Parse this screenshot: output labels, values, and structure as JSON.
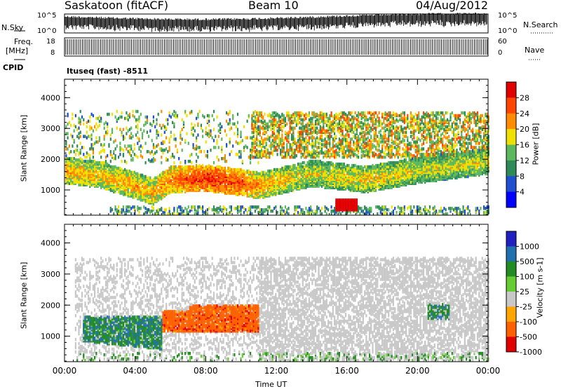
{
  "header": {
    "station": "Saskatoon (fitACF)",
    "beam": "Beam 10",
    "date": "04/Aug/2012"
  },
  "top_strip": {
    "nsky_label": "N.Sky",
    "nsky_ticks": [
      "10^5",
      "10^0"
    ],
    "nsearch_label": "N.Search",
    "nsearch_ticks": [
      "10^5",
      "10^0"
    ],
    "freq_label": "Freq.",
    "freq_unit": "[MHz]",
    "freq_ticks": [
      "18",
      "8"
    ],
    "nave_label": "Nave",
    "nave_ticks": [
      "60",
      "0"
    ],
    "cpid_label": "CPID",
    "cpid_value": "Ituseq (fast) -8511"
  },
  "colors": {
    "power_scale": [
      "#0000ff",
      "#1f4fd0",
      "#2e8b57",
      "#5cb85c",
      "#f0e000",
      "#ff8c00",
      "#ff4500",
      "#e00000"
    ],
    "velocity_scale": [
      "#2020c0",
      "#2070b0",
      "#228b22",
      "#66cc33",
      "#c8c8c8",
      "#ffa500",
      "#ff6000",
      "#e00000"
    ]
  },
  "chart_data": [
    {
      "type": "heatmap",
      "panel": "power",
      "x_ticks": [
        "00:00",
        "04:00",
        "08:00",
        "12:00",
        "16:00",
        "20:00",
        "00:00"
      ],
      "xlim_hours": [
        0,
        24
      ],
      "ylabel": "Slant Range [km]",
      "y_ticks": [
        1000,
        2000,
        3000,
        4000
      ],
      "ylim_km": [
        180,
        4600
      ],
      "colorbar_label": "Power [dB]",
      "colorbar_ticks": [
        4,
        8,
        12,
        16,
        20,
        24,
        28
      ],
      "clim": [
        0,
        32
      ],
      "grid": false,
      "features": [
        {
          "desc": "main echo band",
          "t": [
            0,
            2,
            4,
            5,
            6,
            8,
            10,
            11,
            14,
            17,
            20,
            24
          ],
          "range_km": [
            1600,
            1450,
            1100,
            900,
            1300,
            1350,
            1200,
            1100,
            1500,
            1300,
            1600,
            1900
          ],
          "power_db": [
            22,
            20,
            22,
            21,
            24,
            28,
            26,
            22,
            18,
            20,
            18,
            18
          ]
        },
        {
          "desc": "near-range patch",
          "t_start": 15.3,
          "t_end": 16.6,
          "range_km": [
            300,
            650
          ],
          "power_db": 30
        },
        {
          "desc": "far-range scatter",
          "t_start": 10.5,
          "t_end": 24,
          "range_km": [
            2000,
            3500
          ],
          "power_db": 16
        }
      ]
    },
    {
      "type": "heatmap",
      "panel": "velocity",
      "x_ticks": [
        "00:00",
        "04:00",
        "08:00",
        "12:00",
        "16:00",
        "20:00",
        "00:00"
      ],
      "xlim_hours": [
        0,
        24
      ],
      "xlabel": "Time UT",
      "ylabel": "Slant Range [km]",
      "y_ticks": [
        1000,
        2000,
        3000,
        4000
      ],
      "ylim_km": [
        180,
        4600
      ],
      "colorbar_label": "Velocity [m s-1]",
      "colorbar_ticks": [
        1000,
        500,
        100,
        25,
        -25,
        -100,
        -500,
        -1000
      ],
      "clim": [
        -1200,
        1200
      ],
      "grid": false,
      "features": [
        {
          "desc": "early band",
          "t_start": 1.0,
          "t_end": 5.5,
          "range_km": [
            800,
            1600
          ],
          "velocity": 300
        },
        {
          "desc": "evening flow",
          "t_start": 5.5,
          "t_end": 11.0,
          "range_km": [
            1100,
            1800
          ],
          "velocity": -300
        },
        {
          "desc": "ground scatter",
          "t_start": 11.0,
          "t_end": 24,
          "range_km": [
            300,
            3500
          ],
          "velocity": 0
        },
        {
          "desc": "late patch",
          "t_start": 20.5,
          "t_end": 21.8,
          "range_km": [
            1500,
            2000
          ],
          "velocity": 200
        }
      ]
    }
  ]
}
